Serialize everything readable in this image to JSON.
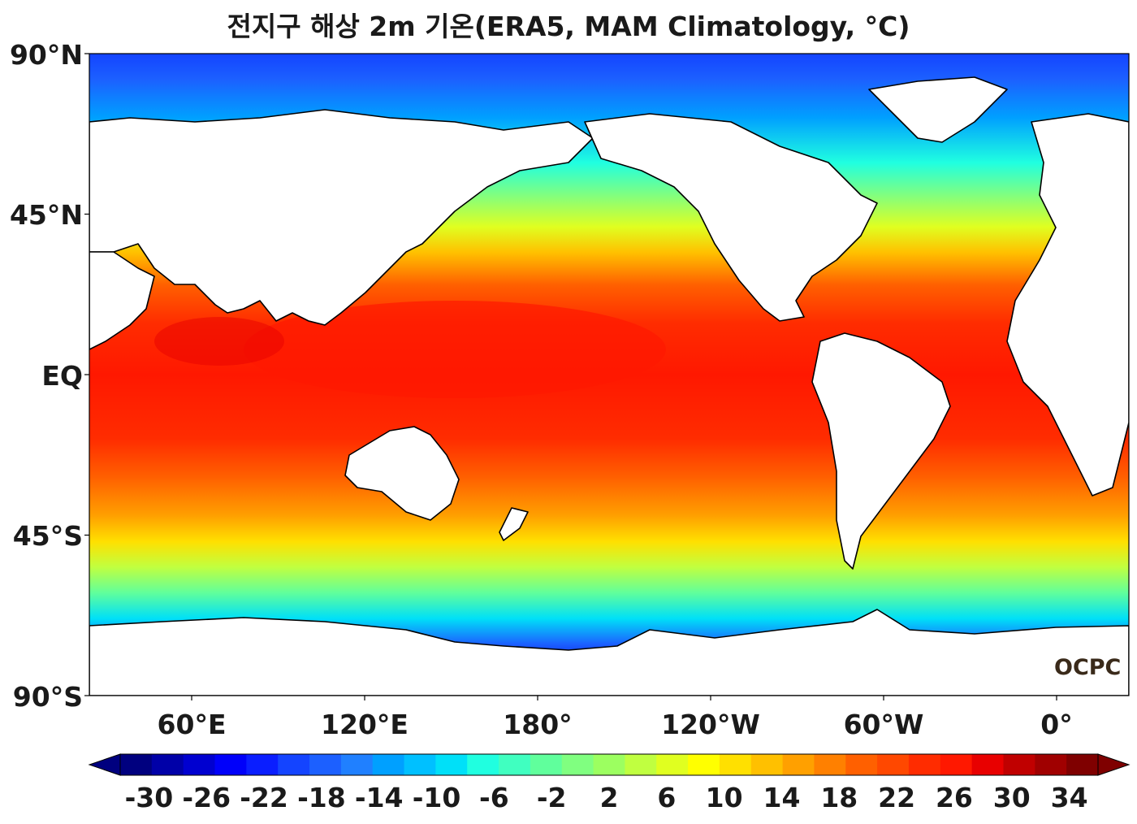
{
  "title": "전지구 해상 2m 기온(ERA5, MAM Climatology, °C)",
  "map": {
    "projection": "equirectangular",
    "central_longitude": "160°E",
    "land_color": "#ffffff",
    "coastline_color": "#000000",
    "latitude_labels": [
      {
        "lat": 90,
        "label": "90°N"
      },
      {
        "lat": 45,
        "label": "45°N"
      },
      {
        "lat": 0,
        "label": "EQ"
      },
      {
        "lat": -45,
        "label": "45°S"
      },
      {
        "lat": -90,
        "label": "90°S"
      }
    ],
    "longitude_labels": [
      {
        "lon": 60,
        "label": "60°E"
      },
      {
        "lon": 120,
        "label": "120°E"
      },
      {
        "lon": 180,
        "label": "180°"
      },
      {
        "lon": 240,
        "label": "120°W"
      },
      {
        "lon": 300,
        "label": "60°W"
      },
      {
        "lon": 360,
        "label": "0°"
      }
    ]
  },
  "colorbar": {
    "min": -32,
    "max": 36,
    "step": 2,
    "tick_labels": [
      "-30",
      "-26",
      "-22",
      "-18",
      "-14",
      "-10",
      "-6",
      "-2",
      "2",
      "6",
      "10",
      "14",
      "18",
      "22",
      "26",
      "30",
      "34"
    ],
    "colors": [
      "#00007f",
      "#0000a8",
      "#0000d0",
      "#0000fa",
      "#0a1eff",
      "#1444ff",
      "#1c60ff",
      "#2080ff",
      "#00a0ff",
      "#00c0ff",
      "#00e0f8",
      "#20ffe0",
      "#40ffc0",
      "#60ff9c",
      "#80ff80",
      "#9cff60",
      "#c0ff40",
      "#e0ff20",
      "#ffff00",
      "#ffe000",
      "#ffc000",
      "#ffa000",
      "#ff8000",
      "#ff6000",
      "#ff4800",
      "#ff2c00",
      "#ff1800",
      "#e80000",
      "#c00000",
      "#a00000",
      "#7f0000"
    ],
    "extend": "both"
  },
  "logo_text": "OCPC"
}
